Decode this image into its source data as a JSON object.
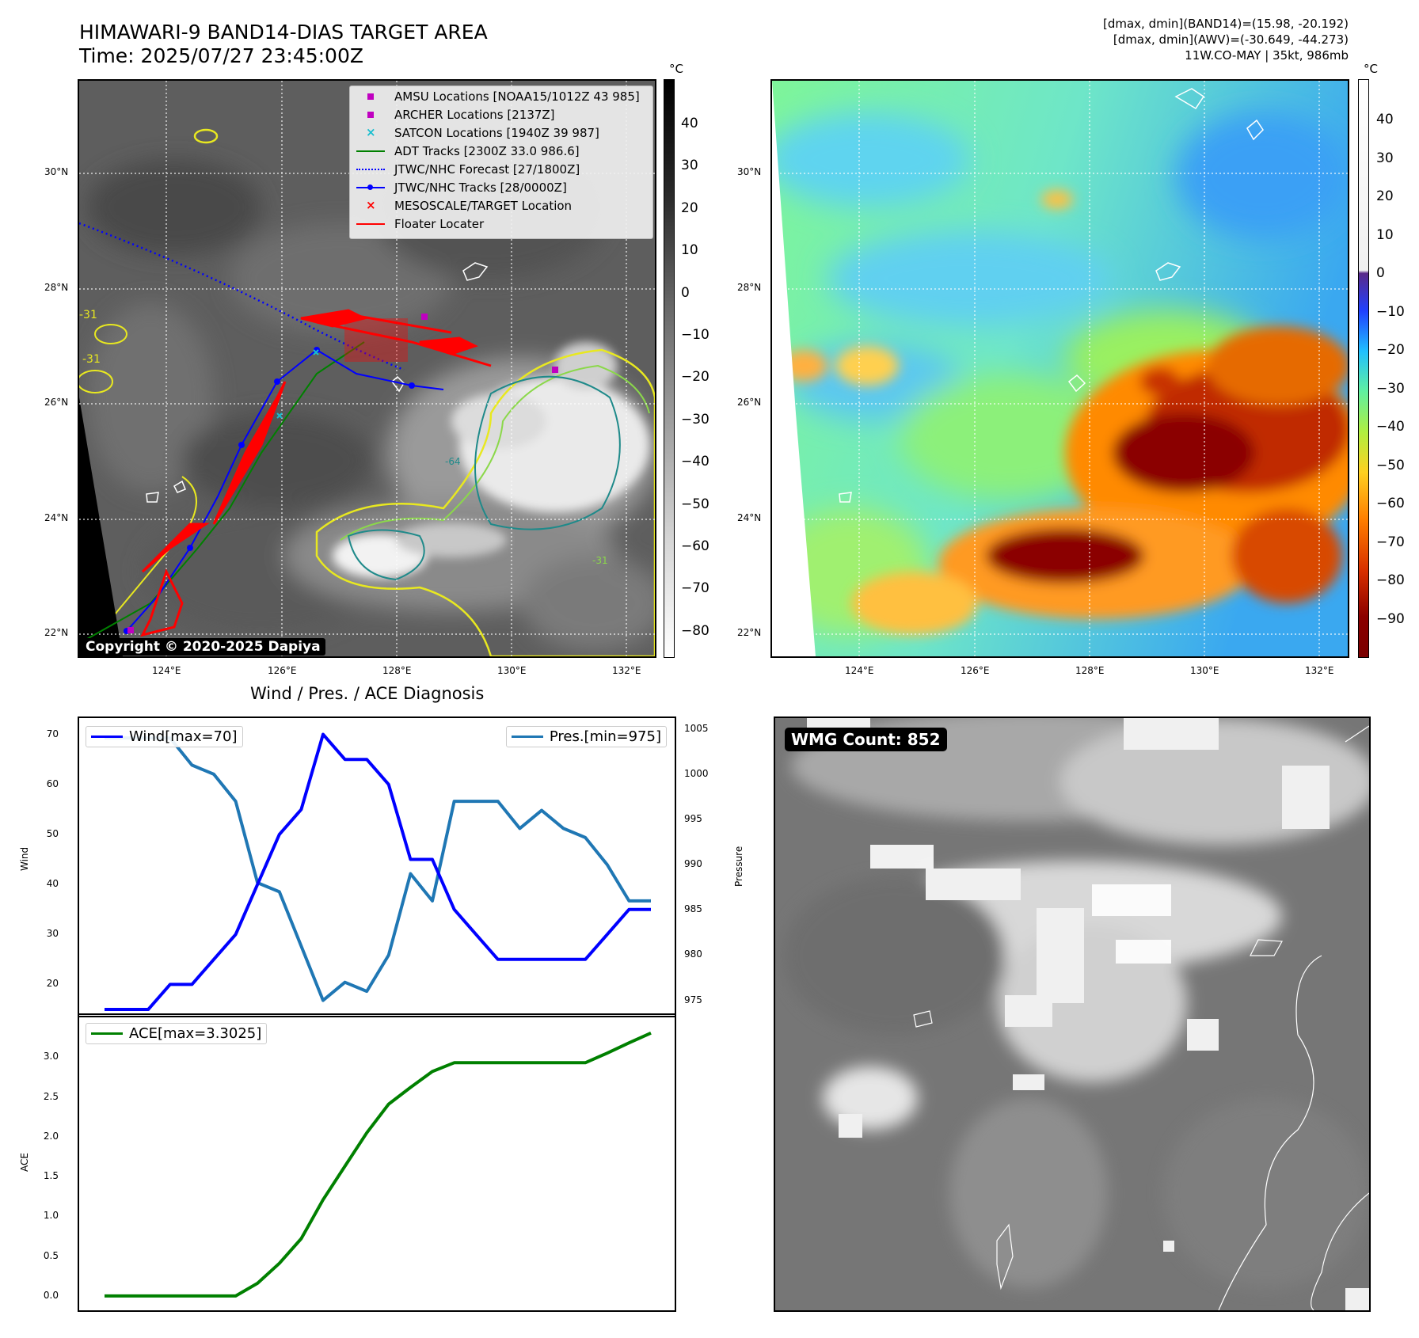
{
  "header": {
    "title_line1": "HIMAWARI-9 BAND14-DIAS TARGET AREA",
    "title_line2": "Time: 2025/07/27 23:45:00Z",
    "info_line1": "[dmax, dmin](BAND14)=(15.98, -20.192)",
    "info_line2": "[dmax, dmin](AWV)=(-30.649, -44.273)",
    "info_line3": "11W.CO-MAY | 35kt, 986mb"
  },
  "map": {
    "lat_labels": [
      "30°N",
      "28°N",
      "26°N",
      "24°N",
      "22°N"
    ],
    "lon_labels": [
      "124°E",
      "126°E",
      "128°E",
      "130°E",
      "132°E"
    ],
    "contour_labels": [
      "-31",
      "-31",
      "-64",
      "-31"
    ],
    "copyright": "Copyright © 2020-2025 Dapiya",
    "legend": [
      {
        "label": "AMSU Locations [NOAA15/1012Z 43 985]",
        "symbol": "square",
        "color": "#c000c0"
      },
      {
        "label": "ARCHER Locations [2137Z]",
        "symbol": "square",
        "color": "#c000c0"
      },
      {
        "label": "SATCON Locations [1940Z 39 987]",
        "symbol": "x",
        "color": "#17becf"
      },
      {
        "label": "ADT Tracks [2300Z 33.0 986.6]",
        "symbol": "line",
        "color": "#008000"
      },
      {
        "label": "JTWC/NHC Forecast [27/1800Z]",
        "symbol": "dotted",
        "color": "#0000ff"
      },
      {
        "label": "JTWC/NHC Tracks [28/0000Z]",
        "symbol": "line-dot",
        "color": "#0000ff"
      },
      {
        "label": "MESOSCALE/TARGET Location",
        "symbol": "x",
        "color": "#ff0000"
      },
      {
        "label": "Floater Locater",
        "symbol": "line",
        "color": "#ff0000"
      }
    ]
  },
  "colorbar_left": {
    "unit": "°C",
    "ticks": [
      "40",
      "30",
      "20",
      "10",
      "0",
      "−10",
      "−20",
      "−30",
      "−40",
      "−50",
      "−60",
      "−70",
      "−80"
    ]
  },
  "colorbar_right": {
    "unit": "°C",
    "ticks": [
      "40",
      "30",
      "20",
      "10",
      "0",
      "−10",
      "−20",
      "−30",
      "−40",
      "−50",
      "−60",
      "−70",
      "−80",
      "−90"
    ]
  },
  "diagnosis": {
    "title": "Wind / Pres. / ACE Diagnosis",
    "wind_legend": "Wind[max=70]",
    "pres_legend": "Pres.[min=975]",
    "ace_legend": "ACE[max=3.3025]",
    "wind_ylabel": "Wind",
    "pres_ylabel": "Pressure",
    "ace_ylabel": "ACE"
  },
  "wmg": {
    "label": "WMG Count: 852"
  },
  "chart_data": [
    {
      "type": "line",
      "title": "Wind / Pres. / ACE Diagnosis",
      "ylabel": "Wind",
      "ylim": [
        15,
        72
      ],
      "yticks": [
        20,
        30,
        40,
        50,
        60,
        70
      ],
      "series": [
        {
          "name": "Wind[max=70]",
          "color": "#0000ff",
          "values": [
            15,
            15,
            15,
            20,
            20,
            25,
            30,
            40,
            50,
            55,
            70,
            65,
            65,
            60,
            45,
            45,
            35,
            30,
            25,
            25,
            25,
            25,
            25,
            30,
            35,
            35
          ]
        }
      ]
    },
    {
      "type": "line",
      "ylabel": "Pressure",
      "ylim": [
        974,
        1005.5
      ],
      "yticks": [
        975,
        980,
        985,
        990,
        995,
        1000,
        1005
      ],
      "series": [
        {
          "name": "Pres.[min=975]",
          "color": "#1f77b4",
          "values": [
            1004,
            1004,
            1004,
            1004,
            1001,
            1000,
            997,
            988,
            987,
            981,
            975,
            977,
            976,
            980,
            989,
            986,
            997,
            997,
            997,
            994,
            996,
            994,
            993,
            990,
            986,
            986
          ]
        }
      ]
    },
    {
      "type": "line",
      "ylabel": "ACE",
      "ylim": [
        -0.1,
        3.45
      ],
      "yticks": [
        0.0,
        0.5,
        1.0,
        1.5,
        2.0,
        2.5,
        3.0
      ],
      "series": [
        {
          "name": "ACE[max=3.3025]",
          "color": "#008000",
          "values": [
            0,
            0,
            0,
            0,
            0,
            0,
            0,
            0.16,
            0.41,
            0.72,
            1.21,
            1.63,
            2.05,
            2.41,
            2.62,
            2.82,
            2.93,
            2.93,
            2.93,
            2.93,
            2.93,
            2.93,
            2.93,
            3.05,
            3.18,
            3.3025
          ]
        }
      ]
    }
  ]
}
